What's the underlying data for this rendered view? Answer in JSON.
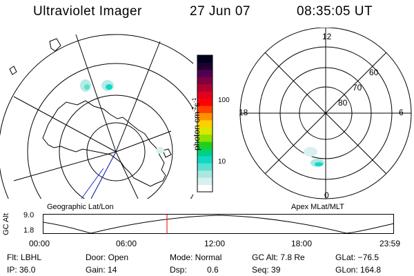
{
  "header": {
    "instrument": "Ultraviolet Imager",
    "date": "27 Jun 07",
    "time": "08:35:05 UT"
  },
  "geographic_panel": {
    "label": "Geographic Lat/Lon"
  },
  "apex_panel": {
    "label": "Apex MLat/MLT",
    "mlt_labels": {
      "top": "12",
      "left": "18",
      "right": "6",
      "bottom": "0"
    },
    "lat_labels": [
      "60",
      "70",
      "80"
    ]
  },
  "colorbar": {
    "unit_text": "photon cm",
    "unit_exp1": "-2",
    "unit_s": "s",
    "unit_exp2": "-1",
    "ticks": [
      "100",
      "10"
    ],
    "colors": [
      "#ffffff",
      "#d8f0f0",
      "#a8e8e0",
      "#5ae0d0",
      "#10d8c8",
      "#00d080",
      "#20d020",
      "#90e000",
      "#d8e800",
      "#ffd000",
      "#ff9000",
      "#ff4000",
      "#ff0000",
      "#e00020",
      "#b00030",
      "#800040",
      "#500050",
      "#200030",
      "#000020"
    ]
  },
  "altitude_plot": {
    "axis_label": "GC Alt",
    "y_ticks": [
      "9.0",
      "1.8"
    ],
    "x_ticks": [
      "00:00",
      "06:00",
      "12:00",
      "18:00",
      "23:59"
    ],
    "marker_color": "#dd0000"
  },
  "info": {
    "flt": "Flt: LBHL",
    "ip": "IP: 36.0",
    "door": "Door: Open",
    "gain": "Gain: 14",
    "mode": "Mode: Normal",
    "dsp_label": "Dsp:",
    "dsp_value": "0.6",
    "gcalt": "GC Alt: 7.8 Re",
    "seq": "Seq: 39",
    "glat": "GLat: −76.5",
    "glon": "GLon: 164.8"
  }
}
